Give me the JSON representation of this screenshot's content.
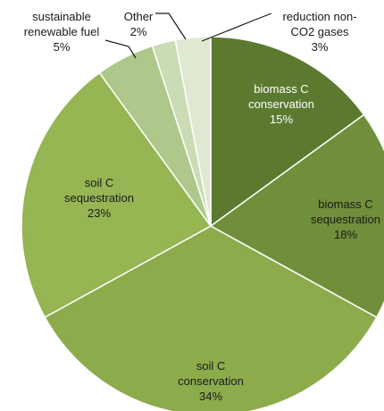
{
  "chart_data": {
    "type": "pie",
    "title": "",
    "start_angle_deg": 0,
    "direction": "clockwise",
    "slices": [
      {
        "label_lines": [
          "biomass C",
          "conservation"
        ],
        "pct_text": "15%",
        "value": 15,
        "color": "#5b7a30",
        "label_color": "#ffffff"
      },
      {
        "label_lines": [
          "biomass C",
          "sequestration"
        ],
        "pct_text": "18%",
        "value": 18,
        "color": "#6f8f3a",
        "label_color": "#1a1a1a"
      },
      {
        "label_lines": [
          "soil C",
          "conservation"
        ],
        "pct_text": "34%",
        "value": 34,
        "color": "#8cac4c",
        "label_color": "#1a1a1a"
      },
      {
        "label_lines": [
          "soil C",
          "sequestration"
        ],
        "pct_text": "23%",
        "value": 23,
        "color": "#95b653",
        "label_color": "#1a1a1a"
      },
      {
        "label_lines": [
          "sustainable",
          "renewable fuel"
        ],
        "pct_text": "5%",
        "value": 5,
        "color": "#adc88a",
        "label_color": "#1a1a1a"
      },
      {
        "label_lines": [
          "Other"
        ],
        "pct_text": "2%",
        "value": 2,
        "color": "#cadcb4",
        "label_color": "#1a1a1a"
      },
      {
        "label_lines": [
          "reduction non-",
          "CO2 gases"
        ],
        "pct_text": "3%",
        "value": 3,
        "color": "#dfe9d1",
        "label_color": "#1a1a1a"
      }
    ]
  }
}
